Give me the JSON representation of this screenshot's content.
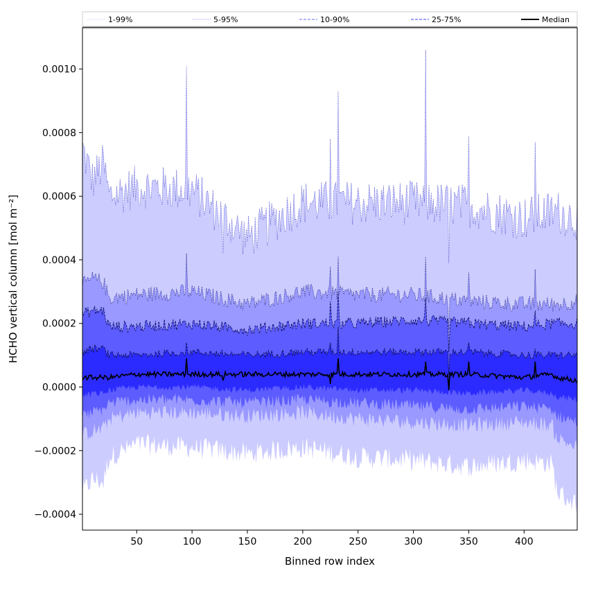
{
  "chart_data": {
    "type": "area",
    "title": "",
    "xlabel": "Binned row index",
    "ylabel": "HCHO vertical column [mol m⁻²]",
    "xlim": [
      1,
      448
    ],
    "ylim": [
      -0.00045,
      0.00113
    ],
    "xticks": [
      50,
      100,
      150,
      200,
      250,
      300,
      350,
      400
    ],
    "xtick_labels": [
      "50",
      "100",
      "150",
      "200",
      "250",
      "300",
      "350",
      "400"
    ],
    "yticks": [
      -0.0004,
      -0.0002,
      0.0,
      0.0002,
      0.0004,
      0.0006,
      0.0008,
      0.001
    ],
    "ytick_labels": [
      "−0.0004",
      "−0.0002",
      "0.0000",
      "0.0002",
      "0.0004",
      "0.0006",
      "0.0008",
      "0.0010"
    ],
    "grid": false,
    "legend_position": "top",
    "legend": [
      {
        "label": "1-99%",
        "style": "dotted",
        "color": "#c8c8ff"
      },
      {
        "label": "5-95%",
        "style": "dotted",
        "color": "#8a8aff"
      },
      {
        "label": "10-90%",
        "style": "dashed",
        "color": "#6a6aff"
      },
      {
        "label": "25-75%",
        "style": "dashed",
        "color": "#3a3aff"
      },
      {
        "label": "Median",
        "style": "solid",
        "color": "#000000"
      }
    ],
    "bands": [
      {
        "name": "1-99%",
        "color": "#ccccff",
        "x": [
          1,
          10,
          20,
          25,
          50,
          100,
          150,
          200,
          250,
          300,
          350,
          400,
          425,
          430,
          448
        ],
        "upper": [
          0.00075,
          0.00065,
          0.0007,
          0.0006,
          0.00063,
          0.00062,
          0.00047,
          0.00058,
          0.00058,
          0.00058,
          0.00057,
          0.00053,
          0.00055,
          0.00055,
          0.00053
        ],
        "lower": [
          -0.00033,
          -0.00029,
          -0.0003,
          -0.00022,
          -0.00018,
          -0.00019,
          -0.00021,
          -0.00019,
          -0.00022,
          -0.00023,
          -0.00025,
          -0.00023,
          -0.00024,
          -0.00033,
          -0.00037
        ]
      },
      {
        "name": "5-95%",
        "color": "#9999ff",
        "x": [
          1,
          10,
          20,
          25,
          50,
          100,
          150,
          200,
          250,
          300,
          350,
          400,
          425,
          430,
          448
        ],
        "upper": [
          0.00032,
          0.00034,
          0.00033,
          0.00028,
          0.00029,
          0.0003,
          0.00026,
          0.0003,
          0.00029,
          0.00029,
          0.00027,
          0.00026,
          0.00026,
          0.00026,
          0.00027
        ],
        "lower": [
          -0.00015,
          -0.00014,
          -0.00013,
          -0.0001,
          -8e-05,
          -8e-05,
          -9e-05,
          -8e-05,
          -0.0001,
          -0.00011,
          -0.00012,
          -0.00011,
          -0.00012,
          -0.00016,
          -0.00019
        ]
      },
      {
        "name": "10-90%",
        "color": "#5c5cff",
        "x": [
          1,
          10,
          20,
          25,
          50,
          100,
          150,
          200,
          250,
          300,
          350,
          400,
          425,
          430,
          448
        ],
        "upper": [
          0.00023,
          0.00024,
          0.00024,
          0.00019,
          0.00019,
          0.0002,
          0.00018,
          0.0002,
          0.0002,
          0.00021,
          0.0002,
          0.00019,
          0.0002,
          0.0002,
          0.0002
        ],
        "lower": [
          -9e-05,
          -8e-05,
          -7e-05,
          -5e-05,
          -4e-05,
          -4e-05,
          -5e-05,
          -4e-05,
          -5e-05,
          -6e-05,
          -7e-05,
          -6e-05,
          -7e-05,
          -9e-05,
          -0.00011
        ]
      },
      {
        "name": "25-75%",
        "color": "#2b2bff",
        "x": [
          1,
          10,
          20,
          25,
          50,
          100,
          150,
          200,
          250,
          300,
          350,
          400,
          425,
          430,
          448
        ],
        "upper": [
          0.00011,
          0.00012,
          0.00012,
          0.0001,
          0.0001,
          0.00011,
          0.0001,
          0.00011,
          0.00011,
          0.00011,
          0.00011,
          0.0001,
          0.0001,
          0.0001,
          0.0001
        ],
        "lower": [
          -3e-05,
          -2e-05,
          -2e-05,
          -1e-05,
          0.0,
          0.0,
          -1e-05,
          0.0,
          -1e-05,
          -1e-05,
          -2e-05,
          -1e-05,
          -2e-05,
          -3e-05,
          -4e-05
        ]
      }
    ],
    "median": {
      "name": "Median",
      "x": [
        1,
        10,
        20,
        25,
        50,
        100,
        150,
        200,
        250,
        300,
        350,
        400,
        425,
        430,
        448
      ],
      "y": [
        3e-05,
        3e-05,
        3e-05,
        3e-05,
        4e-05,
        4e-05,
        4e-05,
        4e-05,
        4e-05,
        4e-05,
        4e-05,
        3e-05,
        4e-05,
        3e-05,
        2e-05
      ]
    },
    "spikes": [
      {
        "x": 95,
        "p99": 0.00101,
        "p95": 0.00042,
        "p90": 0.00019,
        "p75": 0.00014,
        "median": 9e-05
      },
      {
        "x": 128,
        "p99": 0.00042,
        "p95": 0.00026,
        "p90": 0.00018,
        "p75": 0.0001,
        "median": 2e-05
      },
      {
        "x": 225,
        "p99": 0.00078,
        "p95": 0.00038,
        "p90": 0.00027,
        "p75": 0.00014,
        "median": 1e-05
      },
      {
        "x": 232,
        "p99": 0.00093,
        "p95": 0.00041,
        "p90": 0.0003,
        "p75": 0.00019,
        "median": 9e-05
      },
      {
        "x": 311,
        "p99": 0.00106,
        "p95": 0.00041,
        "p90": 0.00028,
        "p75": 0.00012,
        "median": 8e-05
      },
      {
        "x": 332,
        "p99": 0.00039,
        "p95": 0.00018,
        "p90": 0.00011,
        "p75": 4e-05,
        "median": -1e-05
      },
      {
        "x": 350,
        "p99": 0.00079,
        "p95": 0.00036,
        "p90": 0.00022,
        "p75": 0.00014,
        "median": 8e-05
      },
      {
        "x": 410,
        "p99": 0.00077,
        "p95": 0.00037,
        "p90": 0.00024,
        "p75": 0.00012,
        "median": 8e-05
      }
    ]
  }
}
